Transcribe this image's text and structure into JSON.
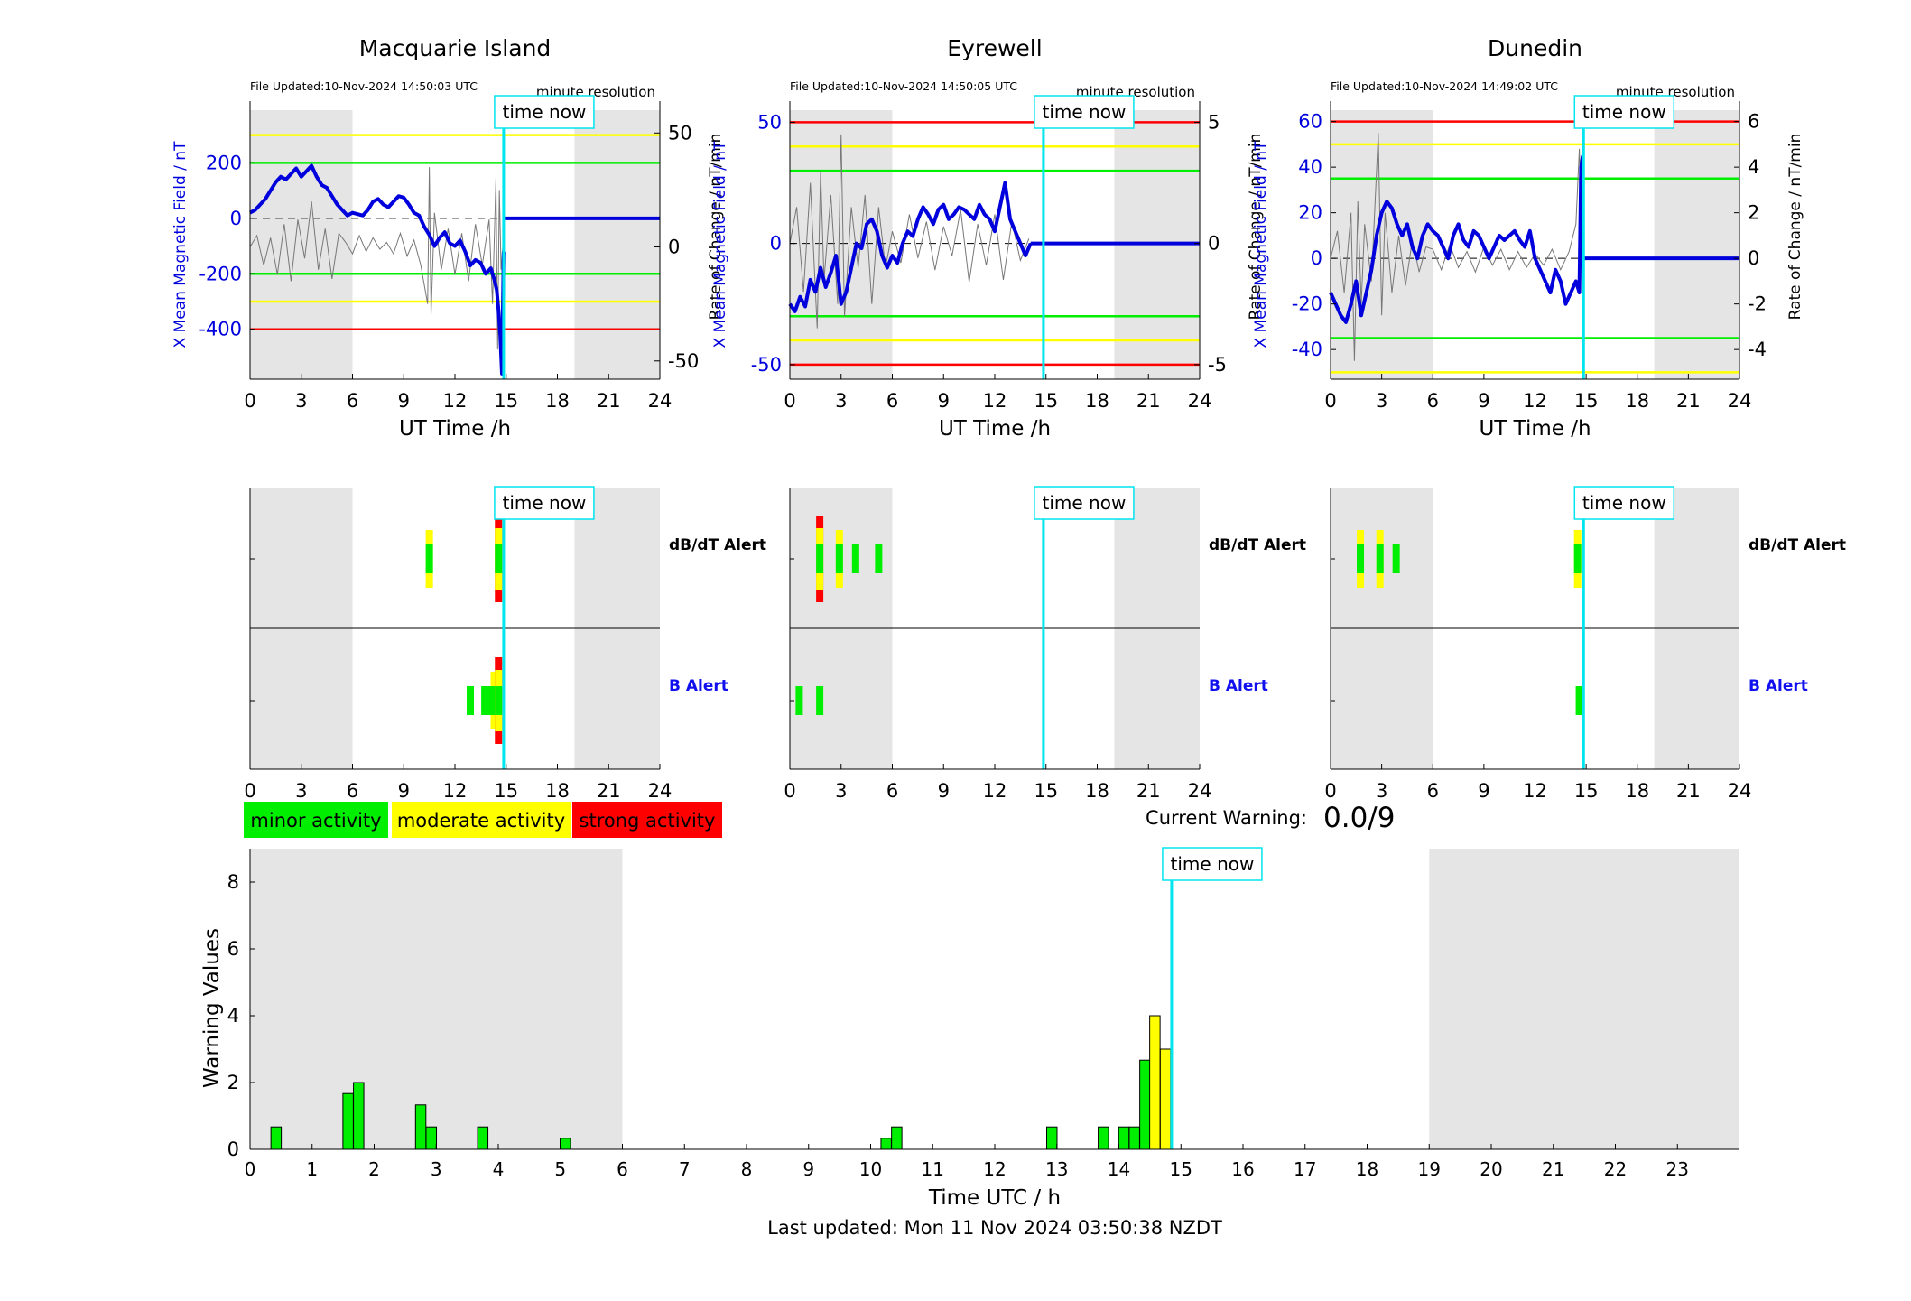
{
  "stations": [
    {
      "name": "Macquarie Island",
      "file_updated": "File Updated:10-Nov-2024 14:50:03 UTC",
      "resolution": "minute resolution",
      "left_label": "X Mean Magnetic Field / nT",
      "right_label": "Rate of Change / nT/min",
      "x_label": "UT Time /h",
      "time_now_label": "time now"
    },
    {
      "name": "Eyrewell",
      "file_updated": "File Updated:10-Nov-2024 14:50:05 UTC",
      "resolution": "minute resolution",
      "left_label": "X Mean Magnetic Field / nT",
      "right_label": "Rate of Change / nT/min",
      "x_label": "UT Time /h",
      "time_now_label": "time now"
    },
    {
      "name": "Dunedin",
      "file_updated": "File Updated:10-Nov-2024 14:49:02 UTC",
      "resolution": "minute resolution",
      "left_label": "X Mean Magnetic Field / nT",
      "right_label": "Rate of Change / nT/min",
      "x_label": "UT Time /h",
      "time_now_label": "time now"
    }
  ],
  "alerts": {
    "dbdt_label": "dB/dT Alert",
    "b_label": "B Alert",
    "time_now_label": "time now"
  },
  "legend": {
    "minor": "minor activity",
    "moderate": "moderate activity",
    "strong": "strong activity"
  },
  "current_warning": {
    "label": "Current Warning:",
    "value": "0.0/9"
  },
  "footer": {
    "last_updated": "Last updated: Mon 11 Nov 2024 03:50:38 NZDT"
  },
  "colors": {
    "minor": "#00ee00",
    "moderate": "#ffff00",
    "strong": "#ff0000",
    "data_line": "#0000dd",
    "rate_line": "#777777",
    "time_now": "#00e5ee",
    "night_shade": "#e5e5e5",
    "axis_label": "#0000dd"
  },
  "chart_data": [
    {
      "type": "line",
      "title": "Macquarie Island",
      "xlabel": "UT Time /h",
      "ylabel": "X Mean Magnetic Field / nT",
      "y2label": "Rate of Change / nT/min",
      "xlim": [
        0,
        24
      ],
      "xticks": [
        0,
        3,
        6,
        9,
        12,
        15,
        18,
        21,
        24
      ],
      "ylim": [
        -580,
        390
      ],
      "yticks": [
        -400,
        -200,
        0,
        200
      ],
      "y2lim": [
        -58,
        60
      ],
      "y2ticks": [
        -50,
        0,
        50
      ],
      "time_now": 14.85,
      "night_shade": [
        [
          0,
          6
        ],
        [
          19,
          24
        ]
      ],
      "thresholds": [
        {
          "value": 300,
          "color": "yellow"
        },
        {
          "value": 200,
          "color": "green"
        },
        {
          "value": -200,
          "color": "green"
        },
        {
          "value": -300,
          "color": "yellow"
        },
        {
          "value": -400,
          "color": "red"
        }
      ],
      "series": [
        {
          "x": [
            0,
            0.3,
            0.6,
            0.9,
            1.2,
            1.5,
            1.8,
            2.1,
            2.4,
            2.7,
            3.0,
            3.3,
            3.6,
            3.9,
            4.2,
            4.5,
            4.8,
            5.1,
            5.4,
            5.7,
            6.0,
            6.3,
            6.6,
            6.9,
            7.2,
            7.5,
            7.8,
            8.1,
            8.4,
            8.7,
            9.0,
            9.3,
            9.6,
            9.9,
            10.2,
            10.5,
            10.8,
            11.1,
            11.4,
            11.7,
            12.0,
            12.3,
            12.6,
            12.9,
            13.2,
            13.5,
            13.8,
            14.1,
            14.3,
            14.45,
            14.55,
            14.65,
            14.75,
            14.85
          ],
          "values": [
            20,
            30,
            50,
            70,
            100,
            130,
            150,
            140,
            160,
            180,
            150,
            170,
            190,
            150,
            120,
            110,
            80,
            50,
            30,
            10,
            20,
            15,
            10,
            30,
            60,
            70,
            50,
            40,
            60,
            80,
            75,
            50,
            20,
            10,
            -30,
            -60,
            -100,
            -70,
            -50,
            -90,
            -100,
            -80,
            -120,
            -170,
            -150,
            -160,
            -200,
            -180,
            -220,
            -260,
            -330,
            -420,
            -560,
            -120
          ]
        },
        {
          "x": [
            0,
            0.4,
            0.8,
            1.2,
            1.6,
            2.0,
            2.4,
            2.8,
            3.2,
            3.6,
            4.0,
            4.4,
            4.8,
            5.2,
            5.6,
            6.0,
            6.4,
            6.8,
            7.2,
            7.6,
            8.0,
            8.4,
            8.8,
            9.2,
            9.6,
            10.0,
            10.4,
            10.5,
            10.6,
            10.8,
            11.2,
            11.6,
            12.0,
            12.4,
            12.8,
            13.2,
            13.6,
            14.0,
            14.2,
            14.4,
            14.5,
            14.6,
            14.7,
            14.8
          ],
          "values": [
            0,
            5,
            -8,
            4,
            -12,
            10,
            -15,
            12,
            -5,
            20,
            -10,
            8,
            -14,
            6,
            2,
            -3,
            5,
            -2,
            4,
            -1,
            2,
            -3,
            6,
            -4,
            3,
            -8,
            -25,
            35,
            -30,
            15,
            -10,
            8,
            -12,
            6,
            -15,
            10,
            -8,
            12,
            -25,
            30,
            -45,
            25,
            -10,
            0
          ]
        }
      ]
    },
    {
      "type": "line",
      "title": "Eyrewell",
      "xlabel": "UT Time /h",
      "ylabel": "X Mean Magnetic Field / nT",
      "y2label": "Rate of Change / nT/min",
      "xlim": [
        0,
        24
      ],
      "xticks": [
        0,
        3,
        6,
        9,
        12,
        15,
        18,
        21,
        24
      ],
      "ylim": [
        -56,
        55
      ],
      "yticks": [
        -50,
        0,
        50
      ],
      "y2lim": [
        -5.6,
        5.5
      ],
      "y2ticks": [
        -5,
        0,
        5
      ],
      "time_now": 14.85,
      "night_shade": [
        [
          0,
          6
        ],
        [
          19,
          24
        ]
      ],
      "thresholds": [
        {
          "value": 50,
          "color": "red"
        },
        {
          "value": 40,
          "color": "yellow"
        },
        {
          "value": 30,
          "color": "green"
        },
        {
          "value": -30,
          "color": "green"
        },
        {
          "value": -40,
          "color": "yellow"
        },
        {
          "value": -50,
          "color": "red"
        }
      ],
      "series": [
        {
          "x": [
            0,
            0.3,
            0.6,
            0.9,
            1.2,
            1.5,
            1.8,
            2.1,
            2.4,
            2.7,
            3.0,
            3.3,
            3.6,
            3.9,
            4.2,
            4.5,
            4.8,
            5.1,
            5.4,
            5.7,
            6.0,
            6.3,
            6.6,
            6.9,
            7.2,
            7.5,
            7.8,
            8.1,
            8.4,
            8.7,
            9.0,
            9.3,
            9.6,
            9.9,
            10.2,
            10.5,
            10.8,
            11.1,
            11.4,
            11.7,
            12.0,
            12.3,
            12.6,
            12.9,
            13.2,
            13.5,
            13.8,
            14.1
          ],
          "values": [
            -25,
            -28,
            -22,
            -26,
            -15,
            -20,
            -10,
            -18,
            -12,
            -5,
            -25,
            -20,
            -10,
            0,
            -2,
            8,
            10,
            5,
            -5,
            -10,
            -5,
            -8,
            0,
            5,
            3,
            10,
            15,
            12,
            8,
            14,
            16,
            10,
            12,
            15,
            14,
            12,
            10,
            16,
            12,
            10,
            5,
            15,
            25,
            10,
            5,
            0,
            -5,
            0
          ]
        },
        {
          "x": [
            0,
            0.4,
            0.8,
            1.2,
            1.6,
            1.8,
            2.0,
            2.4,
            2.8,
            3.0,
            3.2,
            3.6,
            4.0,
            4.4,
            4.8,
            5.2,
            5.6,
            6.0,
            6.5,
            7.0,
            7.5,
            8.0,
            8.5,
            9.0,
            9.5,
            10.0,
            10.5,
            11.0,
            11.5,
            12.0,
            12.5,
            13.0,
            13.5,
            14.0
          ],
          "values": [
            0,
            1.5,
            -2,
            2.5,
            -3.5,
            3.0,
            -1.5,
            2.0,
            -2.5,
            4.5,
            -3.0,
            1.5,
            -1.0,
            2.0,
            -2.5,
            1.5,
            -1.0,
            0.5,
            -0.8,
            1.2,
            -0.6,
            0.9,
            -1.1,
            0.7,
            -0.5,
            1.4,
            -1.6,
            0.8,
            -0.9,
            1.2,
            -1.5,
            0.9,
            -0.7,
            0.2
          ]
        }
      ]
    },
    {
      "type": "line",
      "title": "Dunedin",
      "xlabel": "UT Time /h",
      "ylabel": "X Mean Magnetic Field / nT",
      "y2label": "Rate of Change / nT/min",
      "xlim": [
        0,
        24
      ],
      "xticks": [
        0,
        3,
        6,
        9,
        12,
        15,
        18,
        21,
        24
      ],
      "ylim": [
        -53,
        65
      ],
      "yticks": [
        -40,
        -20,
        0,
        20,
        40,
        60
      ],
      "y2lim": [
        -5.3,
        6.5
      ],
      "y2ticks": [
        -4,
        -2,
        0,
        2,
        4,
        6
      ],
      "time_now": 14.85,
      "night_shade": [
        [
          0,
          6
        ],
        [
          19,
          24
        ]
      ],
      "thresholds": [
        {
          "value": 60,
          "color": "red"
        },
        {
          "value": 50,
          "color": "yellow"
        },
        {
          "value": 35,
          "color": "green"
        },
        {
          "value": -35,
          "color": "green"
        },
        {
          "value": -50,
          "color": "yellow"
        }
      ],
      "series": [
        {
          "x": [
            0,
            0.3,
            0.6,
            0.9,
            1.2,
            1.5,
            1.8,
            2.1,
            2.4,
            2.7,
            3.0,
            3.3,
            3.6,
            3.9,
            4.2,
            4.5,
            4.8,
            5.1,
            5.4,
            5.7,
            6.0,
            6.3,
            6.6,
            6.9,
            7.2,
            7.5,
            7.8,
            8.1,
            8.4,
            8.7,
            9.0,
            9.3,
            9.6,
            9.9,
            10.2,
            10.5,
            10.8,
            11.1,
            11.4,
            11.7,
            12.0,
            12.3,
            12.6,
            12.9,
            13.2,
            13.5,
            13.8,
            14.1,
            14.4,
            14.6,
            14.7,
            14.8
          ],
          "values": [
            -15,
            -20,
            -25,
            -28,
            -20,
            -10,
            -25,
            -15,
            -5,
            10,
            20,
            25,
            22,
            15,
            10,
            15,
            5,
            0,
            10,
            15,
            12,
            10,
            5,
            0,
            10,
            15,
            8,
            5,
            12,
            10,
            5,
            0,
            5,
            10,
            8,
            10,
            12,
            8,
            5,
            12,
            0,
            -5,
            -10,
            -15,
            -5,
            -10,
            -20,
            -15,
            -10,
            -15,
            40,
            45
          ]
        },
        {
          "x": [
            0,
            0.4,
            0.8,
            1.2,
            1.4,
            1.6,
            1.8,
            2.0,
            2.4,
            2.8,
            3.0,
            3.2,
            3.6,
            4.0,
            4.4,
            4.8,
            5.2,
            5.6,
            6.0,
            6.5,
            7.0,
            7.5,
            8.0,
            8.5,
            9.0,
            9.5,
            10.0,
            10.5,
            11.0,
            11.5,
            12.0,
            12.5,
            13.0,
            13.5,
            14.0,
            14.4,
            14.6,
            14.8
          ],
          "values": [
            0,
            1.2,
            -1.5,
            2.0,
            -4.5,
            2.5,
            -2.0,
            1.5,
            -1.0,
            5.5,
            -2.5,
            2.0,
            -1.5,
            1.0,
            -1.2,
            0.8,
            -0.6,
            0.5,
            0.4,
            -0.5,
            0.6,
            -0.4,
            0.3,
            -0.6,
            0.5,
            -0.3,
            0.4,
            -0.5,
            0.3,
            -0.4,
            0.2,
            -0.3,
            0.4,
            -0.5,
            0.3,
            1.5,
            4.8,
            0
          ]
        }
      ]
    },
    {
      "type": "bar",
      "title": "",
      "xlabel": "Time UTC / h",
      "ylabel": "Warning Values",
      "xlim": [
        0,
        24
      ],
      "xticks": [
        0,
        1,
        2,
        3,
        4,
        5,
        6,
        7,
        8,
        9,
        10,
        11,
        12,
        13,
        14,
        15,
        16,
        17,
        18,
        19,
        20,
        21,
        22,
        23
      ],
      "ylim": [
        0,
        9
      ],
      "yticks": [
        0,
        2,
        4,
        6,
        8
      ],
      "time_now": 14.85,
      "night_shade": [
        [
          0,
          6
        ],
        [
          19,
          24
        ]
      ],
      "bar_width": 0.167,
      "x": [
        0.42,
        1.58,
        1.75,
        2.75,
        2.92,
        3.75,
        5.08,
        10.25,
        10.42,
        12.92,
        13.75,
        14.08,
        14.25,
        14.42,
        14.58,
        14.75
      ],
      "values": [
        0.67,
        1.67,
        2.0,
        1.33,
        0.67,
        0.67,
        0.33,
        0.33,
        0.67,
        0.67,
        0.67,
        0.67,
        0.67,
        2.67,
        4.0,
        3.0
      ],
      "levels": [
        "minor",
        "minor",
        "minor",
        "minor",
        "minor",
        "minor",
        "minor",
        "minor",
        "minor",
        "minor",
        "minor",
        "minor",
        "minor",
        "minor",
        "moderate",
        "moderate"
      ]
    }
  ],
  "alert_data": [
    {
      "station": "Macquarie Island",
      "dbdt": [
        {
          "x": 10.5,
          "level": "moderate"
        },
        {
          "x": 14.55,
          "level": "strong"
        }
      ],
      "b": [
        {
          "x": 12.9,
          "level": "minor"
        },
        {
          "x": 13.75,
          "level": "minor"
        },
        {
          "x": 14.05,
          "level": "minor"
        },
        {
          "x": 14.3,
          "level": "moderate"
        },
        {
          "x": 14.55,
          "level": "strong"
        }
      ]
    },
    {
      "station": "Eyrewell",
      "dbdt": [
        {
          "x": 1.75,
          "level": "strong"
        },
        {
          "x": 2.9,
          "level": "moderate"
        },
        {
          "x": 3.85,
          "level": "minor"
        },
        {
          "x": 5.2,
          "level": "minor"
        }
      ],
      "b": [
        {
          "x": 0.55,
          "level": "minor"
        },
        {
          "x": 1.75,
          "level": "minor"
        }
      ]
    },
    {
      "station": "Dunedin",
      "dbdt": [
        {
          "x": 1.75,
          "level": "moderate"
        },
        {
          "x": 2.9,
          "level": "moderate"
        },
        {
          "x": 3.85,
          "level": "minor"
        },
        {
          "x": 14.5,
          "level": "moderate"
        }
      ],
      "b": [
        {
          "x": 14.6,
          "level": "minor"
        }
      ]
    }
  ]
}
